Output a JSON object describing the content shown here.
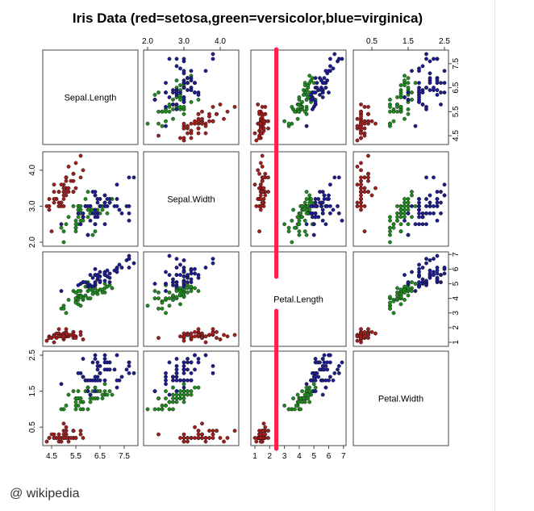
{
  "title": "Iris Data (red=setosa,green=versicolor,blue=virginica)",
  "credit": "@ wikipedia",
  "colors": {
    "setosa": "#a11e1e",
    "versicolor": "#1f8a1f",
    "virginica": "#1c1c8f",
    "marker_line": "#ff1f4b"
  },
  "chart_data": {
    "type": "scatter",
    "title": "Iris Data (red=setosa,green=versicolor,blue=virginica)",
    "variables": [
      "Sepal.Length",
      "Sepal.Width",
      "Petal.Length",
      "Petal.Width"
    ],
    "ranges": {
      "Sepal.Length": [
        4.3,
        7.9
      ],
      "Sepal.Width": [
        2.0,
        4.4
      ],
      "Petal.Length": [
        1.0,
        6.9
      ],
      "Petal.Width": [
        0.1,
        2.5
      ]
    },
    "ticks": {
      "Sepal.Length": [
        "4.5",
        "5.5",
        "6.5",
        "7.5"
      ],
      "Sepal.Width": [
        "2.0",
        "3.0",
        "4.0"
      ],
      "Petal.Length": [
        "1",
        "2",
        "3",
        "4",
        "5",
        "6",
        "7"
      ],
      "Petal.Width": [
        "0.5",
        "1.5",
        "2.5"
      ]
    },
    "legend": "in title",
    "grid": false,
    "annotation": {
      "type": "vertical-line",
      "x": 2.45,
      "variable": "Petal.Length"
    },
    "series": [
      {
        "name": "setosa",
        "points": [
          [
            5.1,
            3.5,
            1.4,
            0.2
          ],
          [
            4.9,
            3.0,
            1.4,
            0.2
          ],
          [
            4.7,
            3.2,
            1.3,
            0.2
          ],
          [
            4.6,
            3.1,
            1.5,
            0.2
          ],
          [
            5.0,
            3.6,
            1.4,
            0.2
          ],
          [
            5.4,
            3.9,
            1.7,
            0.4
          ],
          [
            4.6,
            3.4,
            1.4,
            0.3
          ],
          [
            5.0,
            3.4,
            1.5,
            0.2
          ],
          [
            4.4,
            2.9,
            1.4,
            0.2
          ],
          [
            4.9,
            3.1,
            1.5,
            0.1
          ],
          [
            5.4,
            3.7,
            1.5,
            0.2
          ],
          [
            4.8,
            3.4,
            1.6,
            0.2
          ],
          [
            4.8,
            3.0,
            1.4,
            0.1
          ],
          [
            4.3,
            3.0,
            1.1,
            0.1
          ],
          [
            5.8,
            4.0,
            1.2,
            0.2
          ],
          [
            5.7,
            4.4,
            1.5,
            0.4
          ],
          [
            5.4,
            3.9,
            1.3,
            0.4
          ],
          [
            5.1,
            3.5,
            1.4,
            0.3
          ],
          [
            5.7,
            3.8,
            1.7,
            0.3
          ],
          [
            5.1,
            3.8,
            1.5,
            0.3
          ],
          [
            5.4,
            3.4,
            1.7,
            0.2
          ],
          [
            5.1,
            3.7,
            1.5,
            0.4
          ],
          [
            4.6,
            3.6,
            1.0,
            0.2
          ],
          [
            5.1,
            3.3,
            1.7,
            0.5
          ],
          [
            4.8,
            3.4,
            1.9,
            0.2
          ],
          [
            5.0,
            3.0,
            1.6,
            0.2
          ],
          [
            5.0,
            3.4,
            1.6,
            0.4
          ],
          [
            5.2,
            3.5,
            1.5,
            0.2
          ],
          [
            5.2,
            3.4,
            1.4,
            0.2
          ],
          [
            4.7,
            3.2,
            1.6,
            0.2
          ],
          [
            4.8,
            3.1,
            1.6,
            0.2
          ],
          [
            5.4,
            3.4,
            1.5,
            0.4
          ],
          [
            5.2,
            4.1,
            1.5,
            0.1
          ],
          [
            5.5,
            4.2,
            1.4,
            0.2
          ],
          [
            4.9,
            3.1,
            1.5,
            0.2
          ],
          [
            5.0,
            3.2,
            1.2,
            0.2
          ],
          [
            5.5,
            3.5,
            1.3,
            0.2
          ],
          [
            4.9,
            3.6,
            1.4,
            0.1
          ],
          [
            4.4,
            3.0,
            1.3,
            0.2
          ],
          [
            5.1,
            3.4,
            1.5,
            0.2
          ],
          [
            5.0,
            3.5,
            1.3,
            0.3
          ],
          [
            4.5,
            2.3,
            1.3,
            0.3
          ],
          [
            4.4,
            3.2,
            1.3,
            0.2
          ],
          [
            5.0,
            3.5,
            1.6,
            0.6
          ],
          [
            5.1,
            3.8,
            1.9,
            0.4
          ],
          [
            4.8,
            3.0,
            1.4,
            0.3
          ],
          [
            5.1,
            3.8,
            1.6,
            0.2
          ],
          [
            4.6,
            3.2,
            1.4,
            0.2
          ],
          [
            5.3,
            3.7,
            1.5,
            0.2
          ],
          [
            5.0,
            3.3,
            1.4,
            0.2
          ]
        ]
      },
      {
        "name": "versicolor",
        "points": [
          [
            7.0,
            3.2,
            4.7,
            1.4
          ],
          [
            6.4,
            3.2,
            4.5,
            1.5
          ],
          [
            6.9,
            3.1,
            4.9,
            1.5
          ],
          [
            5.5,
            2.3,
            4.0,
            1.3
          ],
          [
            6.5,
            2.8,
            4.6,
            1.5
          ],
          [
            5.7,
            2.8,
            4.5,
            1.3
          ],
          [
            6.3,
            3.3,
            4.7,
            1.6
          ],
          [
            4.9,
            2.4,
            3.3,
            1.0
          ],
          [
            6.6,
            2.9,
            4.6,
            1.3
          ],
          [
            5.2,
            2.7,
            3.9,
            1.4
          ],
          [
            5.0,
            2.0,
            3.5,
            1.0
          ],
          [
            5.9,
            3.0,
            4.2,
            1.5
          ],
          [
            6.0,
            2.2,
            4.0,
            1.0
          ],
          [
            6.1,
            2.9,
            4.7,
            1.4
          ],
          [
            5.6,
            2.9,
            3.6,
            1.3
          ],
          [
            6.7,
            3.1,
            4.4,
            1.4
          ],
          [
            5.6,
            3.0,
            4.5,
            1.5
          ],
          [
            5.8,
            2.7,
            4.1,
            1.0
          ],
          [
            6.2,
            2.2,
            4.5,
            1.5
          ],
          [
            5.6,
            2.5,
            3.9,
            1.1
          ],
          [
            5.9,
            3.2,
            4.8,
            1.8
          ],
          [
            6.1,
            2.8,
            4.0,
            1.3
          ],
          [
            6.3,
            2.5,
            4.9,
            1.5
          ],
          [
            6.1,
            2.8,
            4.7,
            1.2
          ],
          [
            6.4,
            2.9,
            4.3,
            1.3
          ],
          [
            6.6,
            3.0,
            4.4,
            1.4
          ],
          [
            6.8,
            2.8,
            4.8,
            1.4
          ],
          [
            6.7,
            3.0,
            5.0,
            1.7
          ],
          [
            6.0,
            2.9,
            4.5,
            1.5
          ],
          [
            5.7,
            2.6,
            3.5,
            1.0
          ],
          [
            5.5,
            2.4,
            3.8,
            1.1
          ],
          [
            5.5,
            2.4,
            3.7,
            1.0
          ],
          [
            5.8,
            2.7,
            3.9,
            1.2
          ],
          [
            6.0,
            2.7,
            5.1,
            1.6
          ],
          [
            5.4,
            3.0,
            4.5,
            1.5
          ],
          [
            6.0,
            3.4,
            4.5,
            1.6
          ],
          [
            6.7,
            3.1,
            4.7,
            1.5
          ],
          [
            6.3,
            2.3,
            4.4,
            1.3
          ],
          [
            5.6,
            3.0,
            4.1,
            1.3
          ],
          [
            5.5,
            2.5,
            4.0,
            1.3
          ],
          [
            5.5,
            2.6,
            4.4,
            1.2
          ],
          [
            6.1,
            3.0,
            4.6,
            1.4
          ],
          [
            5.8,
            2.6,
            4.0,
            1.2
          ],
          [
            5.0,
            2.3,
            3.3,
            1.0
          ],
          [
            5.6,
            2.7,
            4.2,
            1.3
          ],
          [
            5.7,
            3.0,
            4.2,
            1.2
          ],
          [
            5.7,
            2.9,
            4.2,
            1.3
          ],
          [
            6.2,
            2.9,
            4.3,
            1.3
          ],
          [
            5.1,
            2.5,
            3.0,
            1.1
          ],
          [
            5.7,
            2.8,
            4.1,
            1.3
          ]
        ]
      },
      {
        "name": "virginica",
        "points": [
          [
            6.3,
            3.3,
            6.0,
            2.5
          ],
          [
            5.8,
            2.7,
            5.1,
            1.9
          ],
          [
            7.1,
            3.0,
            5.9,
            2.1
          ],
          [
            6.3,
            2.9,
            5.6,
            1.8
          ],
          [
            6.5,
            3.0,
            5.8,
            2.2
          ],
          [
            7.6,
            3.0,
            6.6,
            2.1
          ],
          [
            4.9,
            2.5,
            4.5,
            1.7
          ],
          [
            7.3,
            2.9,
            6.3,
            1.8
          ],
          [
            6.7,
            2.5,
            5.8,
            1.8
          ],
          [
            7.2,
            3.6,
            6.1,
            2.5
          ],
          [
            6.5,
            3.2,
            5.1,
            2.0
          ],
          [
            6.4,
            2.7,
            5.3,
            1.9
          ],
          [
            6.8,
            3.0,
            5.5,
            2.1
          ],
          [
            5.7,
            2.5,
            5.0,
            2.0
          ],
          [
            5.8,
            2.8,
            5.1,
            2.4
          ],
          [
            6.4,
            3.2,
            5.3,
            2.3
          ],
          [
            6.5,
            3.0,
            5.5,
            1.8
          ],
          [
            7.7,
            3.8,
            6.7,
            2.2
          ],
          [
            7.7,
            2.6,
            6.9,
            2.3
          ],
          [
            6.0,
            2.2,
            5.0,
            1.5
          ],
          [
            6.9,
            3.2,
            5.7,
            2.3
          ],
          [
            5.6,
            2.8,
            4.9,
            2.0
          ],
          [
            7.7,
            2.8,
            6.7,
            2.0
          ],
          [
            6.3,
            2.7,
            4.9,
            1.8
          ],
          [
            6.7,
            3.3,
            5.7,
            2.1
          ],
          [
            7.2,
            3.2,
            6.0,
            1.8
          ],
          [
            6.2,
            2.8,
            4.8,
            1.8
          ],
          [
            6.1,
            3.0,
            4.9,
            1.8
          ],
          [
            6.4,
            2.8,
            5.6,
            2.1
          ],
          [
            7.2,
            3.0,
            5.8,
            1.6
          ],
          [
            7.4,
            2.8,
            6.1,
            1.9
          ],
          [
            7.9,
            3.8,
            6.4,
            2.0
          ],
          [
            6.4,
            2.8,
            5.6,
            2.2
          ],
          [
            6.3,
            2.8,
            5.1,
            1.5
          ],
          [
            6.1,
            2.6,
            5.6,
            1.4
          ],
          [
            7.7,
            3.0,
            6.1,
            2.3
          ],
          [
            6.3,
            3.4,
            5.6,
            2.4
          ],
          [
            6.4,
            3.1,
            5.5,
            1.8
          ],
          [
            6.0,
            3.0,
            4.8,
            1.8
          ],
          [
            6.9,
            3.1,
            5.4,
            2.1
          ],
          [
            6.7,
            3.1,
            5.6,
            2.4
          ],
          [
            6.9,
            3.1,
            5.1,
            2.3
          ],
          [
            5.8,
            2.7,
            5.1,
            1.9
          ],
          [
            6.8,
            3.2,
            5.9,
            2.3
          ],
          [
            6.7,
            3.3,
            5.7,
            2.5
          ],
          [
            6.7,
            3.0,
            5.2,
            2.3
          ],
          [
            6.3,
            2.5,
            5.0,
            1.9
          ],
          [
            6.5,
            3.0,
            5.2,
            2.0
          ],
          [
            6.2,
            3.4,
            5.4,
            2.3
          ],
          [
            5.9,
            3.0,
            5.1,
            1.8
          ]
        ]
      }
    ]
  }
}
